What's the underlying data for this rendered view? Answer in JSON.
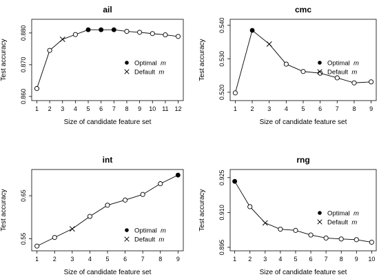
{
  "chart_data": [
    {
      "type": "line",
      "title": "ail",
      "xlabel": "Size of candidate feature set",
      "ylabel": "Test accuracy",
      "x": [
        1,
        2,
        3,
        4,
        5,
        6,
        7,
        8,
        9,
        10,
        11,
        12
      ],
      "y": [
        0.8625,
        0.8745,
        0.878,
        0.8795,
        0.881,
        0.881,
        0.881,
        0.8805,
        0.8802,
        0.8798,
        0.8794,
        0.8789
      ],
      "markers": [
        "open",
        "open",
        "cross",
        "open",
        "filled",
        "filled",
        "filled",
        "open",
        "open",
        "open",
        "open",
        "open"
      ],
      "xlim": [
        0.6,
        12.4
      ],
      "ylim": [
        0.8587,
        0.8843
      ],
      "xticks": [
        1,
        2,
        3,
        4,
        5,
        6,
        7,
        8,
        9,
        10,
        11,
        12
      ],
      "xtick_labels": [
        "1",
        "2",
        "3",
        "4",
        "5",
        "6",
        "7",
        "8",
        "9",
        "10",
        "11",
        "12"
      ],
      "yticks": [
        0.86,
        0.87,
        0.88
      ],
      "ytick_labels": [
        "0.860",
        "0.870",
        "0.880"
      ],
      "legend": {
        "position": "right",
        "optimal": "Optimal",
        "default": "Default",
        "symbol": "m"
      }
    },
    {
      "type": "line",
      "title": "cmc",
      "xlabel": "Size of candidate feature set",
      "ylabel": "Test accuracy",
      "x": [
        1,
        2,
        3,
        4,
        5,
        6,
        7,
        8,
        9
      ],
      "y": [
        0.5198,
        0.5385,
        0.5344,
        0.5284,
        0.5262,
        0.5257,
        0.5243,
        0.5228,
        0.5231
      ],
      "markers": [
        "open",
        "filled",
        "cross",
        "open",
        "open",
        "open",
        "open",
        "open",
        "open"
      ],
      "xlim": [
        0.7,
        9.3
      ],
      "ylim": [
        0.5175,
        0.5418
      ],
      "xticks": [
        1,
        2,
        3,
        4,
        5,
        6,
        7,
        8,
        9
      ],
      "xtick_labels": [
        "1",
        "2",
        "3",
        "4",
        "5",
        "6",
        "7",
        "8",
        "9"
      ],
      "yticks": [
        0.52,
        0.53,
        0.54
      ],
      "ytick_labels": [
        "0.520",
        "0.530",
        "0.540"
      ],
      "legend": {
        "position": "right",
        "optimal": "Optimal",
        "default": "Default",
        "symbol": "m"
      }
    },
    {
      "type": "line",
      "title": "int",
      "xlabel": "Size of candidate feature set",
      "ylabel": "Test accuracy",
      "x": [
        1,
        2,
        3,
        4,
        5,
        6,
        7,
        8,
        9
      ],
      "y": [
        0.533,
        0.553,
        0.573,
        0.602,
        0.628,
        0.64,
        0.653,
        0.678,
        0.698
      ],
      "markers": [
        "open",
        "open",
        "cross",
        "open",
        "open",
        "open",
        "open",
        "open",
        "filled"
      ],
      "xlim": [
        0.7,
        9.3
      ],
      "ylim": [
        0.522,
        0.711
      ],
      "xticks": [
        1,
        2,
        3,
        4,
        5,
        6,
        7,
        8,
        9
      ],
      "xtick_labels": [
        "1",
        "2",
        "3",
        "4",
        "5",
        "6",
        "7",
        "8",
        "9"
      ],
      "yticks": [
        0.55,
        0.65
      ],
      "ytick_labels": [
        "0.55",
        "0.65"
      ],
      "legend": {
        "position": "bottom-right",
        "optimal": "Optimal",
        "default": "Default",
        "symbol": "m"
      }
    },
    {
      "type": "line",
      "title": "rng",
      "xlabel": "Size of candidate feature set",
      "ylabel": "Test accuracy",
      "x": [
        1,
        2,
        3,
        4,
        5,
        6,
        7,
        8,
        9,
        10
      ],
      "y": [
        0.9234,
        0.9125,
        0.9055,
        0.9028,
        0.9023,
        0.9003,
        0.899,
        0.8986,
        0.8983,
        0.8972
      ],
      "markers": [
        "filled",
        "open",
        "cross",
        "open",
        "open",
        "open",
        "open",
        "open",
        "open",
        "open"
      ],
      "xlim": [
        0.7,
        10.3
      ],
      "ylim": [
        0.8935,
        0.9285
      ],
      "xticks": [
        1,
        2,
        3,
        4,
        5,
        6,
        7,
        8,
        9,
        10
      ],
      "xtick_labels": [
        "1",
        "2",
        "3",
        "4",
        "5",
        "6",
        "7",
        "8",
        "9",
        "10"
      ],
      "yticks": [
        0.895,
        0.91,
        0.925
      ],
      "ytick_labels": [
        "0.895",
        "0.910",
        "0.925"
      ],
      "legend": {
        "position": "right",
        "optimal": "Optimal",
        "default": "Default",
        "symbol": "m"
      }
    }
  ]
}
